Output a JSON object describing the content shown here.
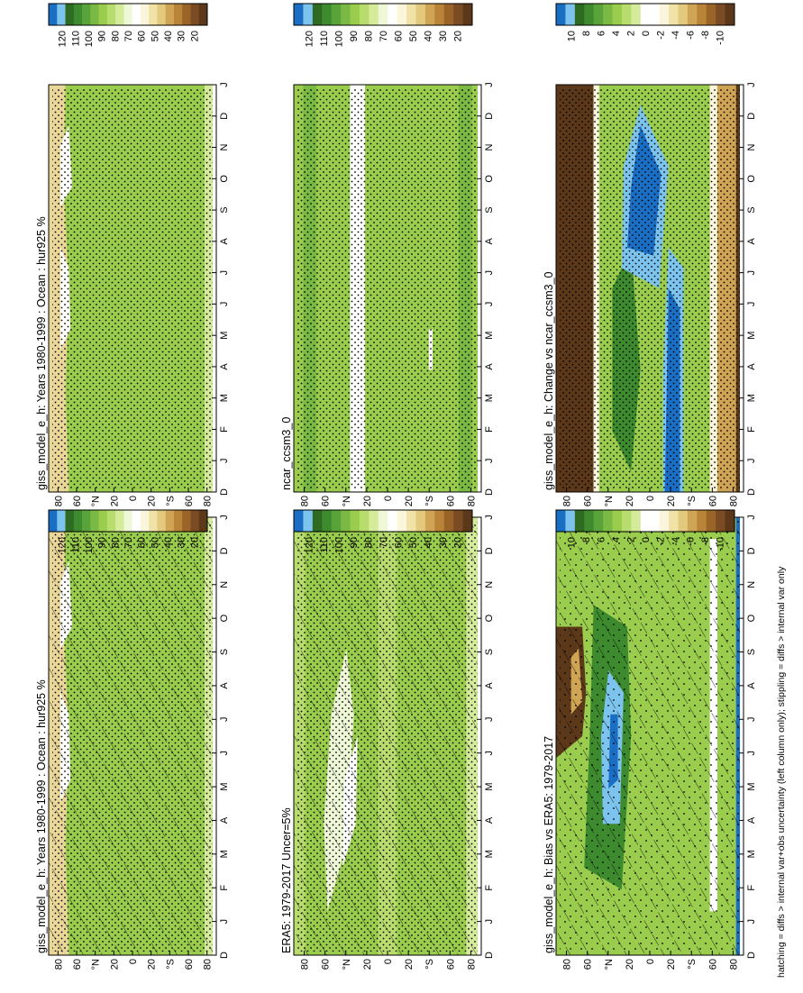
{
  "figure": {
    "footnote": "hatching = diffs > internal var+obs uncertainty (left column only); stippling = diffs > internal var only"
  },
  "chart_data": [
    {
      "type": "heatmap",
      "title": "giss_model_e_h: Years 1980-1999 : Ocean : hur925 %",
      "x_ticks": [
        "D",
        "J",
        "F",
        "M",
        "A",
        "M",
        "J",
        "J",
        "A",
        "S",
        "O",
        "N",
        "D",
        "J"
      ],
      "y_ticks": [
        "80",
        "60",
        "°N",
        "20",
        "0",
        "20",
        "°S",
        "60",
        "80"
      ],
      "colorbar": {
        "labels": [
          "120",
          "110",
          "100",
          "90",
          "80",
          "70",
          "60",
          "50",
          "40",
          "30",
          "20"
        ],
        "colors": [
          "#1a6fc4",
          "#7cc3ee",
          "#2f6a23",
          "#3d8b2e",
          "#58a43a",
          "#79b944",
          "#9acd4e",
          "#b8dc6e",
          "#d5eb9c",
          "#eef7d6",
          "#ffffff",
          "#fbf5dc",
          "#f1e3a8",
          "#e2c97d",
          "#cfa555",
          "#b98338",
          "#9a6429",
          "#7b4c23",
          "#5c381b"
        ]
      },
      "field": "relative_humidity",
      "hatching": true,
      "stippling": true,
      "row": 0,
      "col": 0
    },
    {
      "type": "heatmap",
      "title": "giss_model_e_h: Years 1980-1999 : Ocean : hur925 %",
      "x_ticks": [
        "D",
        "J",
        "F",
        "M",
        "A",
        "M",
        "J",
        "J",
        "A",
        "S",
        "O",
        "N",
        "D",
        "J"
      ],
      "y_ticks": [
        "80",
        "60",
        "°N",
        "20",
        "0",
        "20",
        "°S",
        "60",
        "80"
      ],
      "colorbar": {
        "labels": [
          "120",
          "110",
          "100",
          "90",
          "80",
          "70",
          "60",
          "50",
          "40",
          "30",
          "20"
        ],
        "colors": [
          "#1a6fc4",
          "#7cc3ee",
          "#2f6a23",
          "#3d8b2e",
          "#58a43a",
          "#79b944",
          "#9acd4e",
          "#b8dc6e",
          "#d5eb9c",
          "#eef7d6",
          "#ffffff",
          "#fbf5dc",
          "#f1e3a8",
          "#e2c97d",
          "#cfa555",
          "#b98338",
          "#9a6429",
          "#7b4c23",
          "#5c381b"
        ]
      },
      "field": "relative_humidity",
      "hatching": false,
      "stippling": true,
      "row": 0,
      "col": 1
    },
    {
      "type": "heatmap",
      "title": "ERA5: 1979-2017 Uncer=5%",
      "x_ticks": [
        "D",
        "J",
        "F",
        "M",
        "A",
        "M",
        "J",
        "J",
        "A",
        "S",
        "O",
        "N",
        "D",
        "J"
      ],
      "y_ticks": [
        "80",
        "60",
        "°N",
        "20",
        "0",
        "20",
        "°S",
        "60",
        "80"
      ],
      "colorbar": {
        "labels": [
          "120",
          "110",
          "100",
          "90",
          "80",
          "70",
          "60",
          "50",
          "40",
          "30",
          "20"
        ],
        "colors": [
          "#1a6fc4",
          "#7cc3ee",
          "#2f6a23",
          "#3d8b2e",
          "#58a43a",
          "#79b944",
          "#9acd4e",
          "#b8dc6e",
          "#d5eb9c",
          "#eef7d6",
          "#ffffff",
          "#fbf5dc",
          "#f1e3a8",
          "#e2c97d",
          "#cfa555",
          "#b98338",
          "#9a6429",
          "#7b4c23",
          "#5c381b"
        ]
      },
      "field": "era5",
      "hatching": true,
      "stippling": true,
      "row": 1,
      "col": 0
    },
    {
      "type": "heatmap",
      "title": "ncar_ccsm3_0",
      "x_ticks": [
        "D",
        "J",
        "F",
        "M",
        "A",
        "M",
        "J",
        "J",
        "A",
        "S",
        "O",
        "N",
        "D",
        "J"
      ],
      "y_ticks": [
        "80",
        "60",
        "°N",
        "20",
        "0",
        "20",
        "°S",
        "60",
        "80"
      ],
      "colorbar": {
        "labels": [
          "120",
          "110",
          "100",
          "90",
          "80",
          "70",
          "60",
          "50",
          "40",
          "30",
          "20"
        ],
        "colors": [
          "#1a6fc4",
          "#7cc3ee",
          "#2f6a23",
          "#3d8b2e",
          "#58a43a",
          "#79b944",
          "#9acd4e",
          "#b8dc6e",
          "#d5eb9c",
          "#eef7d6",
          "#ffffff",
          "#fbf5dc",
          "#f1e3a8",
          "#e2c97d",
          "#cfa555",
          "#b98338",
          "#9a6429",
          "#7b4c23",
          "#5c381b"
        ]
      },
      "field": "ncar",
      "hatching": false,
      "stippling": true,
      "row": 1,
      "col": 1
    },
    {
      "type": "heatmap",
      "title": "giss_model_e_h: Bias vs ERA5: 1979-2017",
      "x_ticks": [
        "D",
        "J",
        "F",
        "M",
        "A",
        "M",
        "J",
        "J",
        "A",
        "S",
        "O",
        "N",
        "D",
        "J"
      ],
      "y_ticks": [
        "80",
        "60",
        "°N",
        "20",
        "0",
        "20",
        "°S",
        "60",
        "80"
      ],
      "colorbar": {
        "labels": [
          "10",
          "8",
          "6",
          "4",
          "2",
          "0",
          "-2",
          "-4",
          "-6",
          "-8",
          "-10"
        ],
        "colors": [
          "#1a6fc4",
          "#7cc3ee",
          "#2f6a23",
          "#3d8b2e",
          "#58a43a",
          "#79b944",
          "#9acd4e",
          "#b8dc6e",
          "#d5eb9c",
          "#ffffff",
          "#ffffff",
          "#fbf5dc",
          "#f1e3a8",
          "#e2c97d",
          "#cfa555",
          "#b98338",
          "#9a6429",
          "#7b4c23",
          "#5c381b"
        ]
      },
      "field": "bias",
      "hatching": true,
      "stippling": true,
      "row": 2,
      "col": 0
    },
    {
      "type": "heatmap",
      "title": "giss_model_e_h: Change vs ncar_ccsm3_0",
      "x_ticks": [
        "D",
        "J",
        "F",
        "M",
        "A",
        "M",
        "J",
        "J",
        "A",
        "S",
        "O",
        "N",
        "D",
        "J"
      ],
      "y_ticks": [
        "80",
        "60",
        "°N",
        "20",
        "0",
        "20",
        "°S",
        "60",
        "80"
      ],
      "colorbar": {
        "labels": [
          "10",
          "8",
          "6",
          "4",
          "2",
          "0",
          "-2",
          "-4",
          "-6",
          "-8",
          "-10"
        ],
        "colors": [
          "#1a6fc4",
          "#7cc3ee",
          "#2f6a23",
          "#3d8b2e",
          "#58a43a",
          "#79b944",
          "#9acd4e",
          "#b8dc6e",
          "#d5eb9c",
          "#ffffff",
          "#ffffff",
          "#fbf5dc",
          "#f1e3a8",
          "#e2c97d",
          "#cfa555",
          "#b98338",
          "#9a6429",
          "#7b4c23",
          "#5c381b"
        ]
      },
      "field": "change",
      "hatching": false,
      "stippling": true,
      "row": 2,
      "col": 1
    }
  ]
}
